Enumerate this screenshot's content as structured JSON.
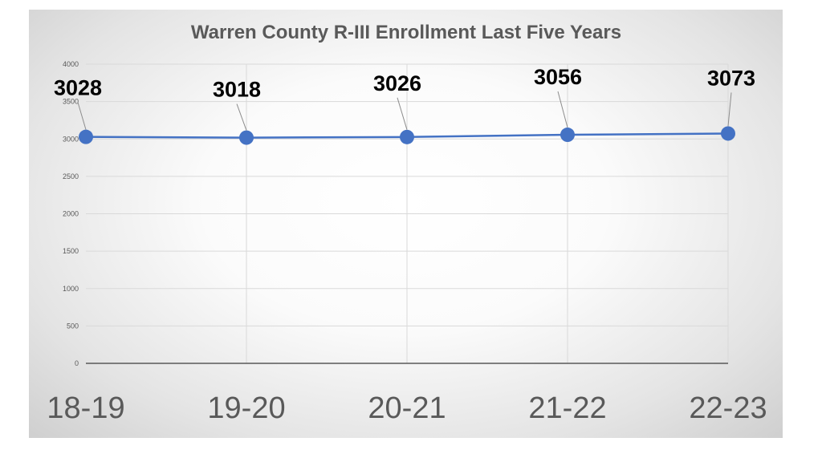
{
  "chart_data": {
    "type": "line",
    "title": "Warren County R-III Enrollment Last Five Years",
    "categories": [
      "18-19",
      "19-20",
      "20-21",
      "21-22",
      "22-23"
    ],
    "series": [
      {
        "values": [
          3028,
          3018,
          3026,
          3056,
          3073
        ]
      }
    ],
    "data_labels": [
      "3028",
      "3018",
      "3026",
      "3056",
      "3073"
    ],
    "y_ticks": [
      "0",
      "500",
      "1000",
      "1500",
      "2000",
      "2500",
      "3000",
      "3500",
      "4000"
    ],
    "ylim": [
      0,
      4000
    ],
    "grid": true,
    "legend": "none",
    "colors": {
      "line": "#4472c4",
      "marker": "#4472c4",
      "grid": "#d9d9d9",
      "axis": "#595959"
    }
  }
}
